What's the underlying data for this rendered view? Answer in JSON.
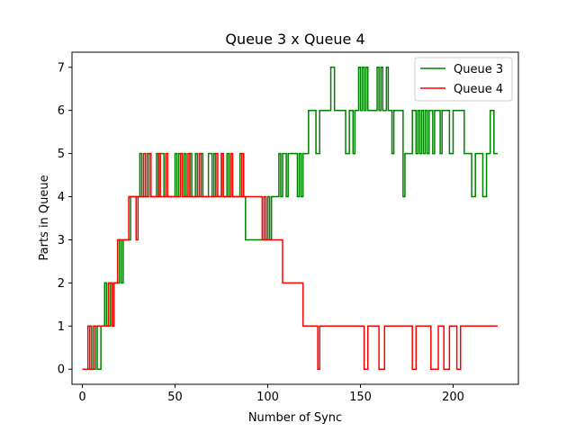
{
  "chart_data": {
    "type": "line",
    "step": true,
    "title": "Queue 3 x Queue 4",
    "xlabel": "Number of Sync",
    "ylabel": "Parts in Queue",
    "xlim": [
      -5.6,
      235.2
    ],
    "ylim": [
      -0.35,
      7.35
    ],
    "xticks": [
      0,
      50,
      100,
      150,
      200
    ],
    "yticks": [
      0,
      1,
      2,
      3,
      4,
      5,
      6,
      7
    ],
    "grid": false,
    "legend_position": "top-right",
    "series": [
      {
        "name": "Queue 3",
        "color": "#008000",
        "x": [
          0,
          4,
          5,
          7,
          8,
          10,
          12,
          13,
          15,
          16,
          17,
          19,
          20,
          21,
          22,
          24,
          26,
          28,
          30,
          31,
          32,
          34,
          35,
          37,
          39,
          40,
          41,
          42,
          44,
          45,
          46,
          48,
          49,
          50,
          51,
          52,
          54,
          55,
          56,
          58,
          59,
          60,
          61,
          62,
          64,
          65,
          66,
          68,
          70,
          71,
          72,
          74,
          75,
          76,
          78,
          79,
          80,
          81,
          82,
          84,
          85,
          86,
          87,
          88,
          96,
          98,
          100,
          101,
          102,
          104,
          106,
          107,
          108,
          109,
          110,
          111,
          113,
          115,
          116,
          117,
          118,
          119,
          120,
          122,
          124,
          125,
          126,
          128,
          130,
          132,
          134,
          136,
          138,
          140,
          142,
          144,
          146,
          147,
          148,
          149,
          150,
          151,
          152,
          153,
          154,
          156,
          158,
          159,
          160,
          161,
          162,
          164,
          165,
          166,
          167,
          168,
          169,
          172,
          173,
          174,
          176,
          178,
          180,
          181,
          182,
          183,
          184,
          185,
          186,
          187,
          188,
          189,
          190,
          192,
          193,
          194,
          196,
          198,
          200,
          202,
          204,
          206,
          207,
          208,
          210,
          212,
          214,
          216,
          218,
          219,
          220,
          222,
          224
        ],
        "y": [
          0,
          1,
          0,
          1,
          0,
          1,
          2,
          1,
          2,
          1,
          2,
          2,
          3,
          2,
          3,
          3,
          4,
          4,
          4,
          5,
          4,
          4,
          5,
          4,
          4,
          5,
          4,
          5,
          4,
          4,
          4,
          4,
          4,
          5,
          4,
          5,
          4,
          5,
          4,
          5,
          4,
          4,
          5,
          4,
          5,
          4,
          4,
          5,
          4,
          5,
          4,
          4,
          5,
          4,
          5,
          4,
          5,
          4,
          4,
          4,
          5,
          4,
          4,
          3,
          3,
          3,
          4,
          3,
          4,
          4,
          5,
          4,
          5,
          5,
          4,
          5,
          5,
          5,
          4,
          5,
          4,
          5,
          5,
          6,
          6,
          6,
          5,
          6,
          6,
          6,
          7,
          6,
          6,
          6,
          5,
          6,
          5,
          6,
          6,
          7,
          6,
          7,
          6,
          7,
          6,
          6,
          6,
          7,
          6,
          7,
          6,
          7,
          6,
          6,
          5,
          6,
          6,
          6,
          4,
          5,
          5,
          6,
          5,
          6,
          5,
          6,
          5,
          6,
          5,
          6,
          6,
          5,
          6,
          6,
          5,
          6,
          6,
          5,
          6,
          6,
          6,
          5,
          5,
          5,
          4,
          5,
          5,
          4,
          5,
          5,
          6,
          5,
          5
        ]
      },
      {
        "name": "Queue 4",
        "color": "#ff0000",
        "x": [
          0,
          3,
          4,
          6,
          7,
          9,
          13,
          14,
          16,
          17,
          19,
          23,
          25,
          28,
          29,
          30,
          31,
          33,
          34,
          36,
          37,
          41,
          42,
          45,
          46,
          51,
          52,
          53,
          54,
          57,
          58,
          63,
          64,
          65,
          66,
          72,
          73,
          75,
          76,
          80,
          81,
          86,
          87,
          88,
          96,
          97,
          98,
          99,
          100,
          101,
          105,
          108,
          112,
          119,
          123,
          127,
          128,
          134,
          152,
          153,
          154,
          160,
          161,
          163,
          164,
          166,
          178,
          179,
          180,
          181,
          188,
          189,
          192,
          193,
          195,
          196,
          198,
          199,
          202,
          203,
          204,
          210,
          212,
          224
        ],
        "y": [
          0,
          1,
          0,
          1,
          1,
          1,
          1,
          2,
          1,
          2,
          3,
          3,
          4,
          4,
          3,
          4,
          4,
          5,
          4,
          5,
          4,
          5,
          4,
          5,
          4,
          4,
          4,
          5,
          4,
          5,
          4,
          5,
          4,
          4,
          4,
          5,
          4,
          5,
          4,
          5,
          4,
          5,
          4,
          4,
          4,
          3,
          4,
          3,
          3,
          3,
          3,
          2,
          2,
          1,
          1,
          0,
          1,
          1,
          0,
          0,
          1,
          0,
          0,
          1,
          1,
          1,
          0,
          0,
          1,
          1,
          0,
          0,
          1,
          1,
          0,
          0,
          1,
          1,
          0,
          0,
          1,
          1,
          1,
          1
        ]
      }
    ]
  }
}
